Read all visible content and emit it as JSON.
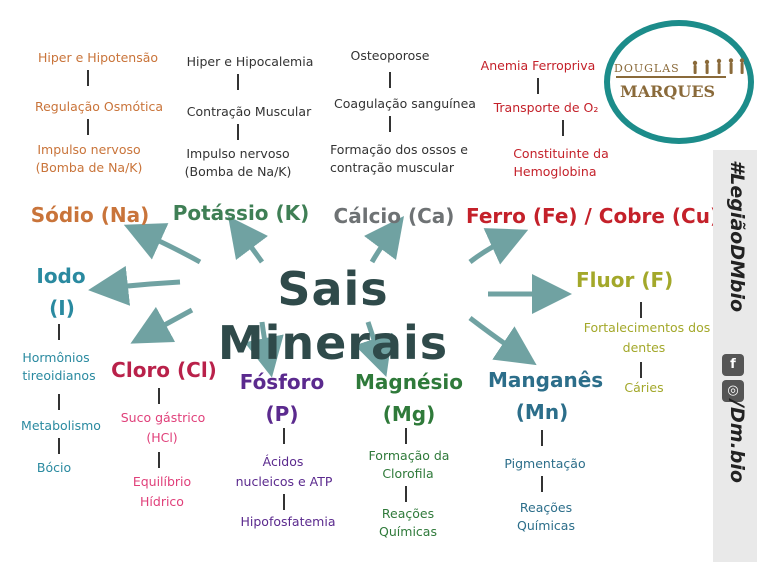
{
  "center_title": "Sais Minerais",
  "colors": {
    "sodio": "#c9743a",
    "potassio": "#3f7f55",
    "calcio": "#6e7274",
    "ferro": "#c4212a",
    "fluor": "#a3a82a",
    "iodo": "#2a8aa0",
    "cloro": "#b9214a",
    "fosforo": "#5b2a8e",
    "magnesio": "#2f7a3a",
    "manganes": "#2c6e8a",
    "center": "#2f4a4a",
    "arrow": "#4d8c8c",
    "logo_ring": "#1c8c8a"
  },
  "minerals": {
    "sodio": {
      "name": "Sódio (Na)",
      "items": [
        "Hiper e Hipotensão",
        "Regulação Osmótica",
        "Impulso nervoso",
        "(Bomba de Na/K)"
      ]
    },
    "potassio": {
      "name": "Potássio (K)",
      "items": [
        "Hiper e Hipocalemia",
        "Contração Muscular",
        "Impulso nervoso",
        "(Bomba de Na/K)"
      ]
    },
    "calcio": {
      "name": "Cálcio (Ca)",
      "items": [
        "Osteoporose",
        "Coagulação sanguínea",
        "Formação dos ossos e",
        "contração muscular"
      ]
    },
    "ferro": {
      "name": "Ferro (Fe) / Cobre (Cu)",
      "items": [
        "Anemia Ferropriva",
        "Transporte de O₂",
        "Constituinte da",
        "Hemoglobina"
      ]
    },
    "fluor": {
      "name": "Fluor (F)",
      "items": [
        "Fortalecimentos dos",
        "dentes",
        "Cáries"
      ]
    },
    "iodo": {
      "name_line1": "Iodo",
      "name_line2": "(I)",
      "items": [
        "Hormônios",
        "tireoidianos",
        "Metabolismo",
        "Bócio"
      ]
    },
    "cloro": {
      "name": "Cloro (Cl)",
      "items": [
        "Suco gástrico",
        "(HCl)",
        "Equilíbrio",
        "Hídrico"
      ]
    },
    "fosforo": {
      "name_line1": "Fósforo",
      "name_line2": "(P)",
      "items": [
        "Ácidos",
        "nucleicos e ATP",
        "Hipofosfatemia"
      ]
    },
    "magnesio": {
      "name_line1": "Magnésio",
      "name_line2": "(Mg)",
      "items": [
        "Formação da",
        "Clorofila",
        "Reações",
        "Químicas"
      ]
    },
    "manganes": {
      "name_line1": "Manganês",
      "name_line2": "(Mn)",
      "items": [
        "Pigmentação",
        "Reações",
        "Químicas"
      ]
    }
  },
  "sidebar": {
    "hashtag": "#LegiãoDMbio",
    "facebook_glyph": "f",
    "instagram_glyph": "◎",
    "handle": "/Dm.bio"
  },
  "logo": {
    "line1": "DOUGLAS",
    "line2": "MARQUES"
  }
}
